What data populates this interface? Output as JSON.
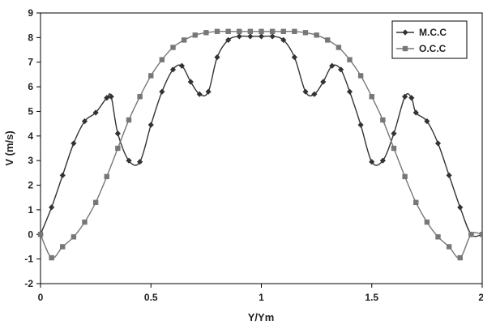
{
  "chart_data": {
    "type": "line",
    "title": "",
    "xlabel": "Y/Ym",
    "ylabel": "V (m/s)",
    "xlim": [
      0,
      2
    ],
    "ylim": [
      -2,
      9
    ],
    "x_ticks": [
      0,
      0.5,
      1,
      1.5,
      2
    ],
    "x_tick_labels": [
      "0",
      "0.5",
      "1",
      "1.5",
      "2"
    ],
    "y_ticks": [
      -2,
      -1,
      0,
      1,
      2,
      3,
      4,
      5,
      6,
      7,
      8,
      9
    ],
    "y_tick_labels": [
      "-2",
      "-1",
      "0",
      "1",
      "2",
      "3",
      "4",
      "5",
      "6",
      "7",
      "8",
      "9"
    ],
    "grid": false,
    "legend_position": "top-right",
    "series": [
      {
        "name": "M.C.C",
        "marker": "diamond",
        "color": "#333333",
        "x": [
          0.0,
          0.05,
          0.1,
          0.15,
          0.2,
          0.25,
          0.3,
          0.32,
          0.35,
          0.4,
          0.45,
          0.5,
          0.55,
          0.6,
          0.64,
          0.68,
          0.72,
          0.76,
          0.8,
          0.85,
          0.9,
          0.95,
          1.0,
          1.05,
          1.1,
          1.15,
          1.2,
          1.24,
          1.28,
          1.32,
          1.36,
          1.4,
          1.45,
          1.5,
          1.55,
          1.6,
          1.65,
          1.68,
          1.7,
          1.75,
          1.8,
          1.85,
          1.9,
          1.95,
          2.0
        ],
        "values": [
          0.0,
          1.1,
          2.4,
          3.7,
          4.6,
          4.95,
          5.55,
          5.6,
          4.1,
          3.0,
          2.95,
          4.45,
          5.8,
          6.7,
          6.85,
          6.2,
          5.7,
          5.8,
          7.2,
          7.9,
          8.05,
          8.05,
          8.05,
          8.05,
          7.9,
          7.2,
          5.8,
          5.7,
          6.2,
          6.85,
          6.7,
          5.8,
          4.45,
          2.95,
          3.0,
          4.1,
          5.6,
          5.55,
          4.95,
          4.6,
          3.7,
          2.4,
          1.1,
          0.0,
          0.0
        ]
      },
      {
        "name": "O.C.C",
        "marker": "square",
        "color": "#777777",
        "x": [
          0.0,
          0.05,
          0.1,
          0.15,
          0.2,
          0.25,
          0.3,
          0.35,
          0.4,
          0.45,
          0.5,
          0.55,
          0.6,
          0.65,
          0.7,
          0.75,
          0.8,
          0.85,
          0.9,
          0.95,
          1.0,
          1.05,
          1.1,
          1.15,
          1.2,
          1.25,
          1.3,
          1.35,
          1.4,
          1.45,
          1.5,
          1.55,
          1.6,
          1.65,
          1.7,
          1.75,
          1.8,
          1.85,
          1.9,
          1.95,
          2.0
        ],
        "values": [
          0.0,
          -0.95,
          -0.5,
          -0.1,
          0.5,
          1.3,
          2.35,
          3.5,
          4.65,
          5.6,
          6.45,
          7.1,
          7.6,
          7.9,
          8.1,
          8.2,
          8.25,
          8.25,
          8.25,
          8.25,
          8.25,
          8.25,
          8.25,
          8.25,
          8.2,
          8.1,
          7.9,
          7.6,
          7.1,
          6.45,
          5.6,
          4.65,
          3.5,
          2.35,
          1.3,
          0.5,
          -0.1,
          -0.5,
          -0.95,
          0.0,
          0.0
        ]
      }
    ]
  }
}
